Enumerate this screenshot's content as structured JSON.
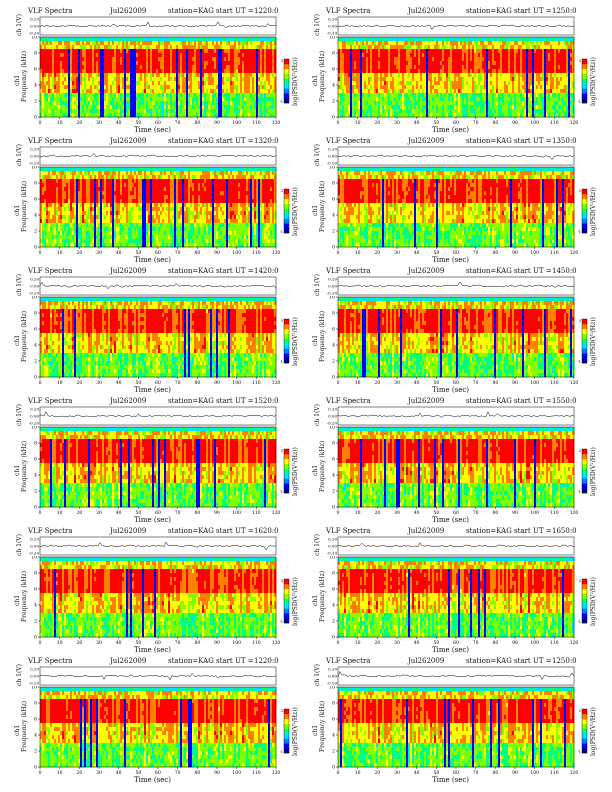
{
  "header_template": {
    "title": "VLF Spectra",
    "station": "station=KAG",
    "start_prefix": "start  UT  ="
  },
  "axis_labels": {
    "waveform_y": "ch 1(V)",
    "spectrogram_y_channel": "ch1",
    "spectrogram_y": "Frequency  (kHz)",
    "x": "Time  (sec)",
    "colorbar": "log(PSD(V²/Hz))"
  },
  "chart_data": {
    "type": "heatmap",
    "description_note": "",
    "x_ticks": [
      "0",
      "10",
      "20",
      "30",
      "40",
      "50",
      "60",
      "70",
      "80",
      "90",
      "100",
      "110",
      "120"
    ],
    "y_ticks": [
      "0",
      "2",
      "4",
      "6",
      "8",
      "10"
    ],
    "waveform_ticks": [
      "0.20",
      "0.00",
      "-0.20"
    ],
    "colorbar_ticks": [
      "3",
      "-1"
    ],
    "xlim": [
      0,
      120
    ],
    "ylim": [
      0,
      10
    ],
    "waveform_ylim": [
      -0.2,
      0.2
    ],
    "panels": [
      {
        "date": "Jul262009",
        "start_time": "1220:0",
        "col": 0,
        "row": 0,
        "seed": 11
      },
      {
        "date": "Jul262009",
        "start_time": "1250:0",
        "col": 1,
        "row": 0,
        "seed": 23
      },
      {
        "date": "Jul262009",
        "start_time": "1320:0",
        "col": 0,
        "row": 1,
        "seed": 37
      },
      {
        "date": "Jul262009",
        "start_time": "1350:0",
        "col": 1,
        "row": 1,
        "seed": 41
      },
      {
        "date": "Jul262009",
        "start_time": "1420:0",
        "col": 0,
        "row": 2,
        "seed": 53
      },
      {
        "date": "Jul262009",
        "start_time": "1450:0",
        "col": 1,
        "row": 2,
        "seed": 67
      },
      {
        "date": "Jul262009",
        "start_time": "1520:0",
        "col": 0,
        "row": 3,
        "seed": 71
      },
      {
        "date": "Jul262009",
        "start_time": "1550:0",
        "col": 1,
        "row": 3,
        "seed": 83
      },
      {
        "date": "Jul262009",
        "start_time": "1620:0",
        "col": 0,
        "row": 4,
        "seed": 97
      },
      {
        "date": "Jul262009",
        "start_time": "1650:0",
        "col": 1,
        "row": 4,
        "seed": 101
      },
      {
        "date": "Jul262009",
        "start_time": "1220:0",
        "col": 0,
        "row": 5,
        "seed": 113
      },
      {
        "date": "Jul262009",
        "start_time": "1250:0",
        "col": 1,
        "row": 5,
        "seed": 127
      }
    ],
    "colormap": [
      "#000080",
      "#0000ff",
      "#0080ff",
      "#00e0ff",
      "#00ff80",
      "#80ff00",
      "#ffff00",
      "#ff8000",
      "#ff0000"
    ]
  }
}
